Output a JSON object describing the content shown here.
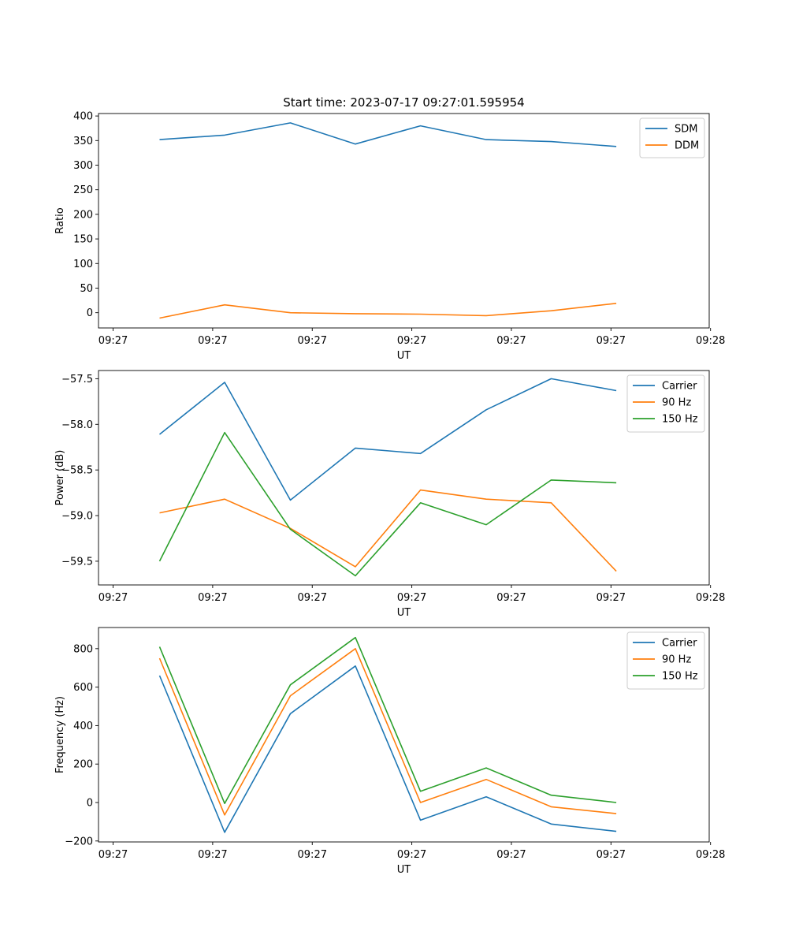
{
  "chart_data": [
    {
      "type": "line",
      "title": "Start time: 2023-07-17 09:27:01.595954",
      "xlabel": "UT",
      "ylabel": "Ratio",
      "xlim": [
        -0.22,
        8.98
      ],
      "ylim": [
        -31,
        405
      ],
      "yticks": [
        0,
        50,
        100,
        150,
        200,
        250,
        300,
        350,
        400
      ],
      "xticks": [
        0,
        1.5,
        3,
        4.5,
        6,
        7.5,
        9
      ],
      "xtick_labels": [
        "09:27",
        "09:27",
        "09:27",
        "09:27",
        "09:27",
        "09:27",
        "09:28"
      ],
      "x": [
        0.7,
        1.68,
        2.67,
        3.65,
        4.63,
        5.62,
        6.6,
        7.58
      ],
      "series": [
        {
          "name": "SDM",
          "color": "#1f77b4",
          "values": [
            352,
            361,
            386,
            343,
            380,
            352,
            348,
            338
          ]
        },
        {
          "name": "DDM",
          "color": "#ff7f0e",
          "values": [
            -11,
            16,
            0,
            -2,
            -3,
            -6,
            4,
            19
          ]
        }
      ],
      "legend": "top-right"
    },
    {
      "type": "line",
      "title": "",
      "xlabel": "UT",
      "ylabel": "Power (dB)",
      "xlim": [
        -0.22,
        8.98
      ],
      "ylim": [
        -59.76,
        -57.41
      ],
      "yticks": [
        -59.5,
        -59.0,
        -58.5,
        -58.0,
        -57.5
      ],
      "ytick_labels": [
        "−59.5",
        "−59.0",
        "−58.5",
        "−58.0",
        "−57.5"
      ],
      "xticks": [
        0,
        1.5,
        3,
        4.5,
        6,
        7.5,
        9
      ],
      "xtick_labels": [
        "09:27",
        "09:27",
        "09:27",
        "09:27",
        "09:27",
        "09:27",
        "09:28"
      ],
      "x": [
        0.7,
        1.68,
        2.67,
        3.65,
        4.63,
        5.62,
        6.6,
        7.58
      ],
      "series": [
        {
          "name": "Carrier",
          "color": "#1f77b4",
          "values": [
            -58.11,
            -57.54,
            -58.83,
            -58.26,
            -58.32,
            -57.84,
            -57.5,
            -57.63
          ]
        },
        {
          "name": "90 Hz",
          "color": "#ff7f0e",
          "values": [
            -58.97,
            -58.82,
            -59.14,
            -59.56,
            -58.72,
            -58.82,
            -58.86,
            -59.61
          ]
        },
        {
          "name": "150 Hz",
          "color": "#2ca02c",
          "values": [
            -59.5,
            -58.09,
            -59.15,
            -59.66,
            -58.86,
            -59.1,
            -58.61,
            -58.64
          ]
        }
      ],
      "legend": "top-right"
    },
    {
      "type": "line",
      "title": "",
      "xlabel": "UT",
      "ylabel": "Frequency (Hz)",
      "xlim": [
        -0.22,
        8.98
      ],
      "ylim": [
        -205,
        910
      ],
      "yticks": [
        -200,
        0,
        200,
        400,
        600,
        800
      ],
      "ytick_labels": [
        "−200",
        "0",
        "200",
        "400",
        "600",
        "800"
      ],
      "xticks": [
        0,
        1.5,
        3,
        4.5,
        6,
        7.5,
        9
      ],
      "xtick_labels": [
        "09:27",
        "09:27",
        "09:27",
        "09:27",
        "09:27",
        "09:27",
        "09:28"
      ],
      "x": [
        0.7,
        1.68,
        2.67,
        3.65,
        4.63,
        5.62,
        6.6,
        7.58
      ],
      "series": [
        {
          "name": "Carrier",
          "color": "#1f77b4",
          "values": [
            660,
            -155,
            462,
            710,
            -92,
            30,
            -112,
            -150
          ]
        },
        {
          "name": "90 Hz",
          "color": "#ff7f0e",
          "values": [
            750,
            -65,
            555,
            800,
            0,
            120,
            -22,
            -58
          ]
        },
        {
          "name": "150 Hz",
          "color": "#2ca02c",
          "values": [
            810,
            -5,
            612,
            858,
            58,
            180,
            38,
            0
          ]
        }
      ],
      "legend": "top-right"
    }
  ]
}
